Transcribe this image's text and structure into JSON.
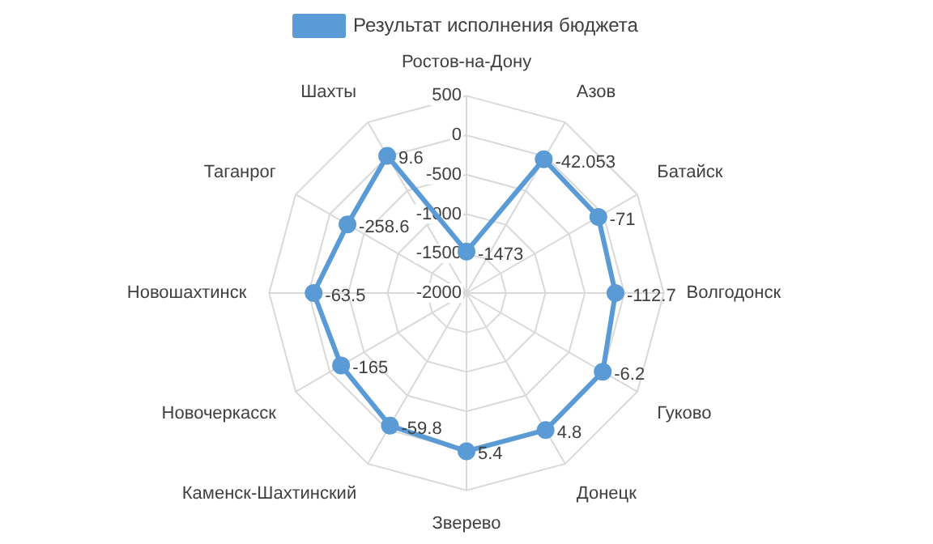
{
  "chart_data": {
    "type": "radar",
    "categories": [
      "Ростов-на-Дону",
      "Азов",
      "Батайск",
      "Волгодонск",
      "Гуково",
      "Донецк",
      "Зверево",
      "Каменск-Шахтинский",
      "Новочеркасск",
      "Новошахтинск",
      "Таганрог",
      "Шахты"
    ],
    "series": [
      {
        "name": "Результат исполнения бюджета",
        "color": "#5b9bd5",
        "values": [
          -1473,
          -42.053,
          -71,
          -112.7,
          -6.2,
          4.8,
          5.4,
          -59.8,
          -165,
          -63.5,
          -258.6,
          9.6
        ]
      }
    ],
    "ylim": [
      -2000,
      500
    ],
    "yticks": [
      -2000,
      -1500,
      -1000,
      -500,
      0,
      500
    ],
    "grid": true,
    "legend": "top",
    "marker": "circle",
    "line_style": "solid",
    "data_labels": true
  }
}
